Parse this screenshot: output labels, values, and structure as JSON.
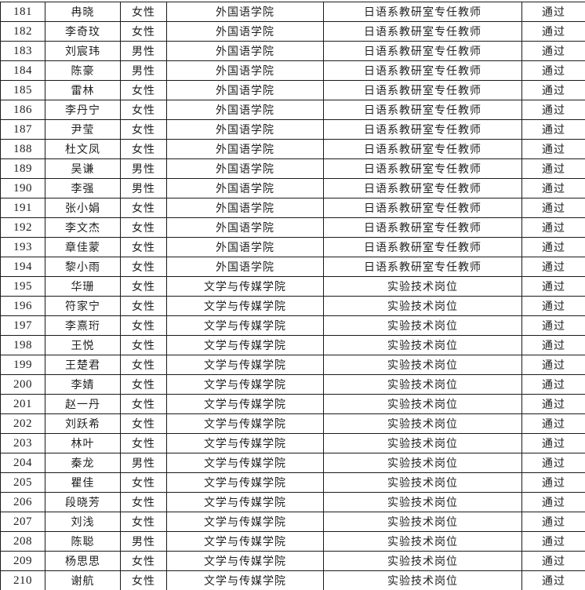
{
  "colors": {
    "background": "#ffffff",
    "border": "#1a1a1a",
    "text": "#1f1f1f"
  },
  "table": {
    "row_fields": [
      "no",
      "name",
      "gender",
      "college",
      "position",
      "status"
    ],
    "rows": [
      {
        "no": "181",
        "name": "冉晓",
        "gender": "女性",
        "college": "外国语学院",
        "position": "日语系教研室专任教师",
        "status": "通过"
      },
      {
        "no": "182",
        "name": "李奇玟",
        "gender": "女性",
        "college": "外国语学院",
        "position": "日语系教研室专任教师",
        "status": "通过"
      },
      {
        "no": "183",
        "name": "刘宸玮",
        "gender": "男性",
        "college": "外国语学院",
        "position": "日语系教研室专任教师",
        "status": "通过"
      },
      {
        "no": "184",
        "name": "陈豪",
        "gender": "男性",
        "college": "外国语学院",
        "position": "日语系教研室专任教师",
        "status": "通过"
      },
      {
        "no": "185",
        "name": "雷林",
        "gender": "女性",
        "college": "外国语学院",
        "position": "日语系教研室专任教师",
        "status": "通过"
      },
      {
        "no": "186",
        "name": "李丹宁",
        "gender": "女性",
        "college": "外国语学院",
        "position": "日语系教研室专任教师",
        "status": "通过"
      },
      {
        "no": "187",
        "name": "尹莹",
        "gender": "女性",
        "college": "外国语学院",
        "position": "日语系教研室专任教师",
        "status": "通过"
      },
      {
        "no": "188",
        "name": "杜文凤",
        "gender": "女性",
        "college": "外国语学院",
        "position": "日语系教研室专任教师",
        "status": "通过"
      },
      {
        "no": "189",
        "name": "吴谦",
        "gender": "男性",
        "college": "外国语学院",
        "position": "日语系教研室专任教师",
        "status": "通过"
      },
      {
        "no": "190",
        "name": "李强",
        "gender": "男性",
        "college": "外国语学院",
        "position": "日语系教研室专任教师",
        "status": "通过"
      },
      {
        "no": "191",
        "name": "张小娟",
        "gender": "女性",
        "college": "外国语学院",
        "position": "日语系教研室专任教师",
        "status": "通过"
      },
      {
        "no": "192",
        "name": "李文杰",
        "gender": "女性",
        "college": "外国语学院",
        "position": "日语系教研室专任教师",
        "status": "通过"
      },
      {
        "no": "193",
        "name": "章佳蒙",
        "gender": "女性",
        "college": "外国语学院",
        "position": "日语系教研室专任教师",
        "status": "通过"
      },
      {
        "no": "194",
        "name": "黎小雨",
        "gender": "女性",
        "college": "外国语学院",
        "position": "日语系教研室专任教师",
        "status": "通过"
      },
      {
        "no": "195",
        "name": "华珊",
        "gender": "女性",
        "college": "文学与传媒学院",
        "position": "实验技术岗位",
        "status": "通过"
      },
      {
        "no": "196",
        "name": "符家宁",
        "gender": "女性",
        "college": "文学与传媒学院",
        "position": "实验技术岗位",
        "status": "通过"
      },
      {
        "no": "197",
        "name": "李熹珩",
        "gender": "女性",
        "college": "文学与传媒学院",
        "position": "实验技术岗位",
        "status": "通过"
      },
      {
        "no": "198",
        "name": "王悦",
        "gender": "女性",
        "college": "文学与传媒学院",
        "position": "实验技术岗位",
        "status": "通过"
      },
      {
        "no": "199",
        "name": "王楚君",
        "gender": "女性",
        "college": "文学与传媒学院",
        "position": "实验技术岗位",
        "status": "通过"
      },
      {
        "no": "200",
        "name": "李婧",
        "gender": "女性",
        "college": "文学与传媒学院",
        "position": "实验技术岗位",
        "status": "通过"
      },
      {
        "no": "201",
        "name": "赵一丹",
        "gender": "女性",
        "college": "文学与传媒学院",
        "position": "实验技术岗位",
        "status": "通过"
      },
      {
        "no": "202",
        "name": "刘跃希",
        "gender": "女性",
        "college": "文学与传媒学院",
        "position": "实验技术岗位",
        "status": "通过"
      },
      {
        "no": "203",
        "name": "林叶",
        "gender": "女性",
        "college": "文学与传媒学院",
        "position": "实验技术岗位",
        "status": "通过"
      },
      {
        "no": "204",
        "name": "秦龙",
        "gender": "男性",
        "college": "文学与传媒学院",
        "position": "实验技术岗位",
        "status": "通过"
      },
      {
        "no": "205",
        "name": "瞿佳",
        "gender": "女性",
        "college": "文学与传媒学院",
        "position": "实验技术岗位",
        "status": "通过"
      },
      {
        "no": "206",
        "name": "段晓芳",
        "gender": "女性",
        "college": "文学与传媒学院",
        "position": "实验技术岗位",
        "status": "通过"
      },
      {
        "no": "207",
        "name": "刘浅",
        "gender": "女性",
        "college": "文学与传媒学院",
        "position": "实验技术岗位",
        "status": "通过"
      },
      {
        "no": "208",
        "name": "陈聪",
        "gender": "男性",
        "college": "文学与传媒学院",
        "position": "实验技术岗位",
        "status": "通过"
      },
      {
        "no": "209",
        "name": "杨思思",
        "gender": "女性",
        "college": "文学与传媒学院",
        "position": "实验技术岗位",
        "status": "通过"
      },
      {
        "no": "210",
        "name": "谢航",
        "gender": "女性",
        "college": "文学与传媒学院",
        "position": "实验技术岗位",
        "status": "通过"
      }
    ]
  }
}
